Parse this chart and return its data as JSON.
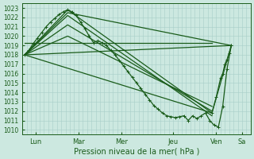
{
  "title": "Pression niveau de la mer( hPa )",
  "bg_color": "#cce8e0",
  "grid_color": "#a8cec8",
  "line_color": "#1a5c1a",
  "xlim": [
    0,
    5.3
  ],
  "ylim": [
    1009.5,
    1023.5
  ],
  "yticks": [
    1010,
    1011,
    1012,
    1013,
    1014,
    1015,
    1016,
    1017,
    1018,
    1019,
    1020,
    1021,
    1022,
    1023
  ],
  "xtick_positions": [
    0.3,
    1.3,
    2.3,
    3.5,
    4.5,
    5.1
  ],
  "xtick_labels": [
    "Lun",
    "Mar",
    "Mer",
    "Jeu",
    "Ven",
    "Sa"
  ],
  "lines": [
    {
      "x": [
        0.05,
        4.4
      ],
      "y": [
        1018.0,
        1011.8
      ],
      "marker": false
    },
    {
      "x": [
        0.05,
        4.4
      ],
      "y": [
        1019.3,
        1019.3
      ],
      "marker": false
    },
    {
      "x": [
        0.05,
        1.05,
        4.4,
        4.85,
        0.05
      ],
      "y": [
        1018.0,
        1022.8,
        1011.8,
        1019.0,
        1018.0
      ],
      "marker": false
    },
    {
      "x": [
        0.05,
        1.05,
        4.85
      ],
      "y": [
        1018.0,
        1022.5,
        1019.0
      ],
      "marker": false
    },
    {
      "x": [
        0.05,
        0.15,
        0.25,
        0.35,
        0.45,
        0.55,
        0.65,
        0.75,
        0.85,
        0.95,
        1.05,
        1.15,
        1.25,
        1.35,
        1.45,
        1.55,
        1.65,
        1.75,
        1.85,
        1.95,
        2.05,
        2.15,
        2.25,
        2.35,
        2.45,
        2.55,
        2.65,
        2.75,
        2.85,
        2.95,
        3.05,
        3.15,
        3.25,
        3.35,
        3.45,
        3.55,
        3.65,
        3.75,
        3.85,
        3.95,
        4.05,
        4.15,
        4.25,
        4.35,
        4.45,
        4.55,
        4.65,
        4.75,
        4.85
      ],
      "y": [
        1018.0,
        1018.5,
        1019.2,
        1019.8,
        1020.4,
        1021.0,
        1021.5,
        1021.9,
        1022.3,
        1022.6,
        1022.8,
        1022.6,
        1022.2,
        1021.5,
        1020.8,
        1020.0,
        1019.3,
        1019.5,
        1019.3,
        1019.0,
        1018.5,
        1018.0,
        1017.4,
        1016.8,
        1016.2,
        1015.6,
        1015.0,
        1014.4,
        1013.8,
        1013.2,
        1012.6,
        1012.2,
        1011.8,
        1011.5,
        1011.4,
        1011.3,
        1011.4,
        1011.5,
        1011.0,
        1011.5,
        1011.2,
        1011.5,
        1011.8,
        1011.0,
        1010.5,
        1010.3,
        1012.5,
        1016.5,
        1019.0
      ],
      "marker": true
    },
    {
      "x": [
        0.05,
        1.05,
        4.4
      ],
      "y": [
        1018.0,
        1021.2,
        1012.0
      ],
      "marker": false
    },
    {
      "x": [
        0.05,
        1.05,
        4.4
      ],
      "y": [
        1018.0,
        1022.2,
        1011.5
      ],
      "marker": false
    },
    {
      "x": [
        0.05,
        1.05,
        4.4
      ],
      "y": [
        1018.0,
        1020.0,
        1012.5
      ],
      "marker": false
    },
    {
      "x": [
        4.4,
        4.5,
        4.6,
        4.65,
        4.7,
        4.75,
        4.8,
        4.85
      ],
      "y": [
        1011.8,
        1013.5,
        1015.5,
        1016.0,
        1017.0,
        1017.5,
        1018.2,
        1019.0
      ],
      "marker": true
    }
  ]
}
